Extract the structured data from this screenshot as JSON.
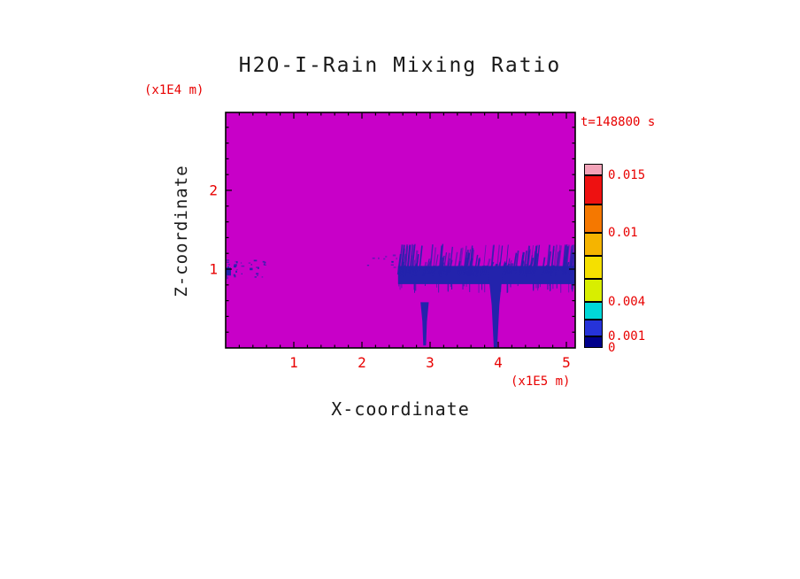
{
  "title": "H2O-I-Rain Mixing Ratio",
  "timestamp": "t=148800 s",
  "axes": {
    "x_label": "X-coordinate",
    "x_units": "(x1E5 m)",
    "x_ticks": [
      "1",
      "2",
      "3",
      "4",
      "5"
    ],
    "y_label": "Z-coordinate",
    "y_units": "(x1E4 m)",
    "y_ticks": [
      "1",
      "2"
    ]
  },
  "colors": {
    "background": "#c800c8",
    "rain": "#2323ac",
    "annotation": "#e80000",
    "frame": "#000000",
    "text": "#1a1a1a"
  },
  "colorbar": {
    "max": 0.016,
    "labels": [
      {
        "text": "0.015",
        "value": 0.015
      },
      {
        "text": "0.01",
        "value": 0.01
      },
      {
        "text": "0.004",
        "value": 0.004
      },
      {
        "text": "0.001",
        "value": 0.001
      },
      {
        "text": "0",
        "value": 0
      }
    ],
    "segments": [
      {
        "from": 0,
        "to": 0.001,
        "color": "#00008b"
      },
      {
        "from": 0.001,
        "to": 0.0025,
        "color": "#2633d9"
      },
      {
        "from": 0.0025,
        "to": 0.004,
        "color": "#00d8d8"
      },
      {
        "from": 0.004,
        "to": 0.006,
        "color": "#d8ee00"
      },
      {
        "from": 0.006,
        "to": 0.008,
        "color": "#f5e000"
      },
      {
        "from": 0.008,
        "to": 0.01,
        "color": "#f5b400"
      },
      {
        "from": 0.01,
        "to": 0.0125,
        "color": "#f57800"
      },
      {
        "from": 0.0125,
        "to": 0.015,
        "color": "#ee1111"
      },
      {
        "from": 0.015,
        "to": 0.016,
        "color": "#f2a3b8"
      }
    ]
  },
  "chart_data": {
    "type": "heatmap",
    "title": "H2O-I-Rain Mixing Ratio",
    "xlabel": "X-coordinate (x1E5 m)",
    "ylabel": "Z-coordinate (x1E4 m)",
    "xlim": [
      0,
      5.13
    ],
    "ylim": [
      0,
      2.99
    ],
    "x_ticks": [
      1,
      2,
      3,
      4,
      5
    ],
    "y_ticks": [
      1,
      2
    ],
    "time_annotation": "t=148800 s",
    "levels": [
      0,
      0.001,
      0.004,
      0.01,
      0.015
    ],
    "background_note": "field ~0 everywhere (magenta); rain shown dark blue at the lowest nonzero level",
    "features": [
      {
        "id": "rain-band",
        "type": "band",
        "x": [
          2.53,
          5.13
        ],
        "z_core": [
          0.81,
          1.04
        ],
        "z_streak_top": 1.32
      },
      {
        "id": "rain-shaft-main",
        "type": "shaft",
        "x": 3.96,
        "z_top": 1.0,
        "z_bottom": 0.0,
        "top_width": 0.22,
        "bottom_width": 0.05
      },
      {
        "id": "rain-shaft-small",
        "type": "shaft",
        "x": 2.92,
        "z_top": 0.58,
        "z_bottom": 0.03,
        "top_width": 0.12,
        "bottom_width": 0.04
      },
      {
        "id": "left-drizzle",
        "type": "speckle",
        "x": [
          0.0,
          0.62
        ],
        "z": [
          0.88,
          1.12
        ],
        "density": 34,
        "solid_edge": true
      },
      {
        "id": "mid-speckle",
        "type": "speckle",
        "x": [
          2.05,
          2.5
        ],
        "z": [
          1.02,
          1.2
        ],
        "density": 10,
        "solid_edge": false
      }
    ]
  }
}
